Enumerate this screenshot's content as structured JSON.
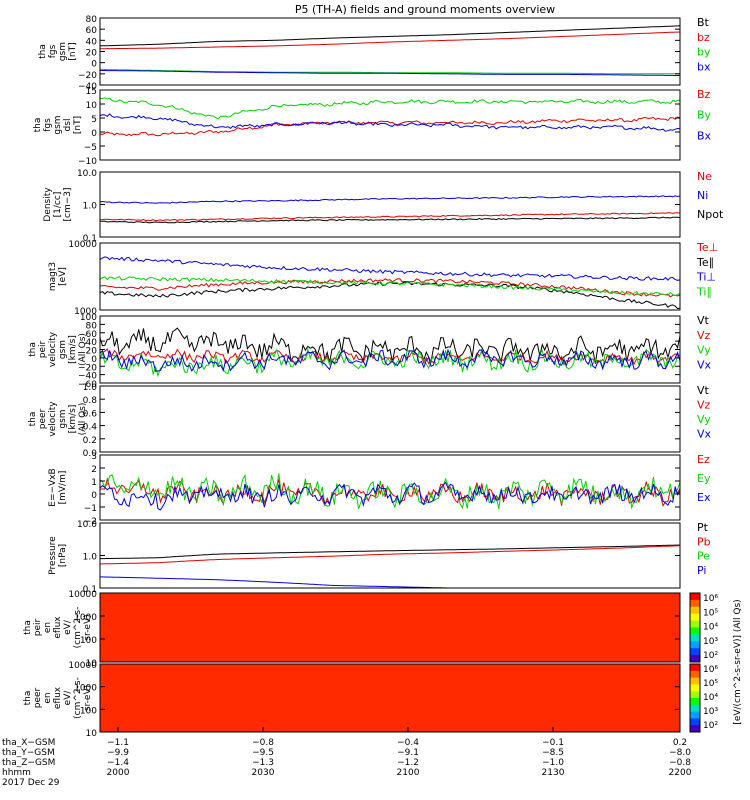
{
  "title": "P5 (TH-A) fields and ground moments overview",
  "colors": {
    "black": "#000000",
    "red": "#e00000",
    "green": "#00d000",
    "blue": "#0000e0"
  },
  "chart_data": [
    {
      "type": "line",
      "panel": "fgs-gsm",
      "ylabel": [
        "tha",
        "fgs",
        "gsm",
        "[nT]"
      ],
      "ylim": [
        -40,
        80
      ],
      "yticks": [
        "80",
        "60",
        "40",
        "20",
        "0",
        "−20",
        "−40"
      ],
      "series": [
        {
          "name": "Bt",
          "color": "black",
          "values": [
            30,
            33,
            38,
            40,
            44,
            47,
            50,
            54,
            58,
            62,
            66
          ]
        },
        {
          "name": "bz",
          "color": "red",
          "values": [
            25,
            26,
            28,
            30,
            33,
            37,
            40,
            43,
            47,
            51,
            55
          ]
        },
        {
          "name": "by",
          "color": "green",
          "values": [
            -12,
            -14,
            -16,
            -17,
            -17,
            -18,
            -18,
            -19,
            -19,
            -20,
            -20
          ]
        },
        {
          "name": "bx",
          "color": "blue",
          "values": [
            -14,
            -15,
            -17,
            -18,
            -19,
            -19,
            -20,
            -21,
            -21,
            -22,
            -23
          ]
        }
      ]
    },
    {
      "type": "line",
      "panel": "fgs-dsl-detrend",
      "ylabel": [
        "tha",
        "fgs",
        "gsm",
        "dsl",
        "[nT]"
      ],
      "ylim": [
        -15,
        15
      ],
      "yticks": [
        "15",
        "10",
        "5",
        "0",
        "−5",
        "−10"
      ],
      "series": [
        {
          "name": "Bz",
          "color": "red",
          "values": [
            -4,
            -4,
            -3,
            0,
            1,
            1,
            1,
            1,
            2,
            2,
            3
          ]
        },
        {
          "name": "By",
          "color": "green",
          "values": [
            11,
            9,
            3,
            8,
            9,
            10,
            10,
            10,
            10,
            10,
            10
          ]
        },
        {
          "name": "Bx",
          "color": "blue",
          "values": [
            4,
            3,
            -1,
            0,
            1,
            0,
            0,
            -1,
            -1,
            -1,
            -2
          ]
        }
      ]
    },
    {
      "type": "line",
      "panel": "density",
      "log": true,
      "ylabel": [
        "Density",
        "[1/cc]",
        "[cm−3]"
      ],
      "ylim": [
        0.1,
        10
      ],
      "yticks": [
        "10.0",
        "1.0",
        "0.1"
      ],
      "series": [
        {
          "name": "Ne",
          "color": "red",
          "values": [
            0.35,
            0.33,
            0.35,
            0.38,
            0.4,
            0.42,
            0.45,
            0.47,
            0.5,
            0.52,
            0.55
          ]
        },
        {
          "name": "Ni",
          "color": "blue",
          "values": [
            1.2,
            1.1,
            1.25,
            1.3,
            1.4,
            1.5,
            1.55,
            1.6,
            1.7,
            1.75,
            1.8
          ]
        },
        {
          "name": "Npot",
          "color": "black",
          "values": [
            0.3,
            0.28,
            0.3,
            0.32,
            0.33,
            0.34,
            0.35,
            0.36,
            0.37,
            0.38,
            0.4
          ]
        }
      ]
    },
    {
      "type": "line",
      "panel": "temperature",
      "log": true,
      "ylabel": [
        "magt3",
        "[eV]"
      ],
      "ylim": [
        1000,
        10000
      ],
      "yticks": [
        "10000",
        "1000"
      ],
      "series": [
        {
          "name": "Te⊥",
          "color": "red",
          "values": [
            2200,
            2100,
            2400,
            2600,
            2700,
            2800,
            2700,
            2500,
            2200,
            1800,
            1600
          ]
        },
        {
          "name": "Te∥",
          "color": "black",
          "values": [
            1800,
            1600,
            1900,
            2100,
            2300,
            2500,
            2400,
            2300,
            1900,
            1400,
            1100
          ]
        },
        {
          "name": "Ti⊥",
          "color": "blue",
          "values": [
            6000,
            5500,
            4800,
            4300,
            4000,
            3700,
            3500,
            3300,
            3200,
            3000,
            2900
          ]
        },
        {
          "name": "Ti∥",
          "color": "green",
          "values": [
            3000,
            2900,
            2800,
            2700,
            2600,
            2500,
            2400,
            2200,
            2000,
            1800,
            1700
          ]
        }
      ]
    },
    {
      "type": "line",
      "panel": "peir-velocity",
      "ylabel": [
        "tha",
        "peir",
        "velocity",
        "gsm",
        "[km/s]",
        "(All Qs)"
      ],
      "ylim": [
        -60,
        100
      ],
      "yticks": [
        "100",
        "80",
        "60",
        "40",
        "20",
        "0",
        "−20",
        "−40",
        "−60"
      ],
      "series": [
        {
          "name": "Vt",
          "color": "black",
          "values": [
            30,
            40,
            35,
            25,
            20,
            20,
            20,
            18,
            18,
            20,
            22
          ]
        },
        {
          "name": "Vz",
          "color": "red",
          "values": [
            5,
            8,
            3,
            2,
            2,
            0,
            0,
            2,
            0,
            0,
            0
          ]
        },
        {
          "name": "Vy",
          "color": "green",
          "values": [
            -10,
            -20,
            -15,
            -8,
            -5,
            -5,
            -5,
            -5,
            -8,
            -5,
            -5
          ]
        },
        {
          "name": "Vx",
          "color": "blue",
          "values": [
            0,
            -15,
            -10,
            -5,
            -5,
            -3,
            -3,
            -2,
            -5,
            -8,
            -5
          ]
        }
      ]
    },
    {
      "type": "line",
      "panel": "peer-velocity",
      "ylabel": [
        "tha",
        "peer",
        "velocity",
        "gsm",
        "[km/s]",
        "(All Qs)"
      ],
      "ylim": [
        0,
        1
      ],
      "yticks": [
        "1.0",
        "0.8",
        "0.6",
        "0.4",
        "0.2",
        "0.0"
      ],
      "series": [
        {
          "name": "Vt",
          "color": "black",
          "values": []
        },
        {
          "name": "Vz",
          "color": "red",
          "values": []
        },
        {
          "name": "Vy",
          "color": "green",
          "values": []
        },
        {
          "name": "Vx",
          "color": "blue",
          "values": []
        }
      ]
    },
    {
      "type": "line",
      "panel": "efield",
      "ylabel": [
        "E=−VxB",
        "[mV/m]"
      ],
      "ylim": [
        -2,
        3
      ],
      "yticks": [
        "3",
        "2",
        "1",
        "0",
        "−1",
        "−2"
      ],
      "series": [
        {
          "name": "Ez",
          "color": "red",
          "values": [
            0.5,
            0.2,
            0,
            0.2,
            0,
            0,
            0,
            0,
            0,
            0,
            0
          ]
        },
        {
          "name": "Ey",
          "color": "green",
          "values": [
            0.5,
            0.5,
            0,
            0.5,
            0,
            0,
            0,
            0,
            0.5,
            0,
            0.5
          ]
        },
        {
          "name": "Ex",
          "color": "blue",
          "values": [
            0,
            -0.3,
            0,
            -0.2,
            0,
            0,
            0,
            0,
            -0.2,
            0,
            0
          ]
        }
      ]
    },
    {
      "type": "line",
      "panel": "pressure",
      "log": true,
      "ylabel": [
        "Pressure",
        "[nPa]"
      ],
      "ylim": [
        0.1,
        10
      ],
      "yticks": [
        "10.0",
        "1.0",
        "0.1"
      ],
      "series": [
        {
          "name": "Pt",
          "color": "black",
          "values": [
            0.8,
            0.85,
            1.1,
            1.2,
            1.3,
            1.4,
            1.5,
            1.6,
            1.75,
            1.9,
            2.1
          ]
        },
        {
          "name": "Pb",
          "color": "red",
          "values": [
            0.55,
            0.6,
            0.75,
            0.85,
            0.95,
            1.1,
            1.2,
            1.35,
            1.5,
            1.7,
            2.0
          ]
        },
        {
          "name": "Pe",
          "color": "green",
          "values": [
            0.08,
            0.08,
            0.08,
            0.08,
            0.08,
            0.08,
            0.08,
            0.08,
            0.08,
            0.08,
            0.08
          ]
        },
        {
          "name": "Pi",
          "color": "blue",
          "values": [
            0.22,
            0.2,
            0.18,
            0.15,
            0.12,
            0.11,
            0.1,
            0.1,
            0.1,
            0.1,
            0.1
          ]
        }
      ]
    },
    {
      "type": "heatmap",
      "panel": "peir-eflux",
      "ylabel": [
        "tha",
        "peir",
        "en",
        "eflux",
        "eV/",
        "(cm^2-s-",
        "sr-eV)"
      ],
      "ylim": [
        5,
        20000
      ],
      "yticks": [
        "10000",
        "1000",
        "100",
        "10"
      ]
    },
    {
      "type": "heatmap",
      "panel": "peer-eflux",
      "ylabel": [
        "tha",
        "peer",
        "en",
        "eflux",
        "eV/",
        "(cm^2-s-",
        "sr-eV)"
      ],
      "ylim": [
        5,
        20000
      ],
      "yticks": [
        "10000",
        "1000",
        "100",
        "10"
      ]
    }
  ],
  "colorbar": {
    "label": "[eV/(cm^2-s-sr-eV)] (All Qs)",
    "ticks_top": [
      "10⁶",
      "10⁵",
      "10⁴",
      "10³",
      "10²"
    ],
    "ticks_bottom": [
      "10⁶",
      "10⁵",
      "10⁴",
      "10³",
      "10²"
    ]
  },
  "xaxis": {
    "rows": [
      {
        "label": "tha_X−GSM",
        "values": [
          "−1.1",
          "−0.8",
          "−0.4",
          "−0.1",
          "0.2"
        ]
      },
      {
        "label": "tha_Y−GSM",
        "values": [
          "−9.9",
          "−9.5",
          "−9.1",
          "−8.5",
          "−8.0"
        ]
      },
      {
        "label": "tha_Z−GSM",
        "values": [
          "−1.4",
          "−1.3",
          "−1.2",
          "−1.0",
          "−0.8"
        ]
      },
      {
        "label": "hhmm",
        "values": [
          "2000",
          "2030",
          "2100",
          "2130",
          "2200"
        ]
      }
    ],
    "date": "2017 Dec 29"
  }
}
